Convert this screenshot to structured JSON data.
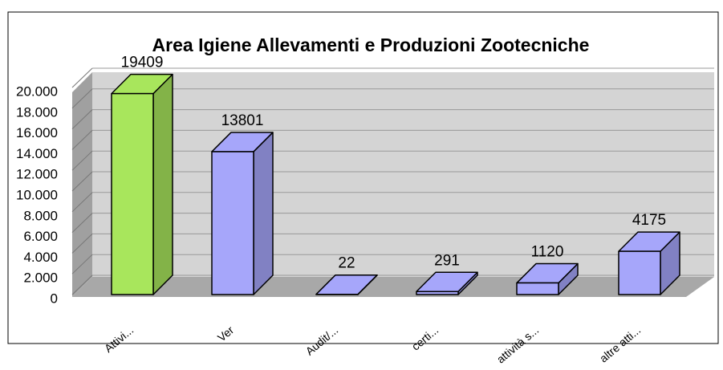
{
  "chart_data": {
    "type": "bar3d",
    "title": "Area Igiene Allevamenti e Produzioni Zootecniche",
    "categories": [
      "Attivi...",
      "Ver",
      "Audit/...",
      "certi...",
      "attività s...",
      "altre atti..."
    ],
    "values": [
      19409,
      13801,
      22,
      291,
      1120,
      4175
    ],
    "colors": [
      "#a8e65c",
      "#a6a6fa",
      "#a6a6fa",
      "#a6a6fa",
      "#a6a6fa",
      "#a6a6fa"
    ],
    "ylim": [
      0,
      20000
    ],
    "yticks": [
      0,
      {
        "value": 2000,
        "label": "2.000"
      },
      {
        "value": 4000,
        "label": "4.000"
      },
      {
        "value": 6000,
        "label": "6.000"
      },
      {
        "value": 8000,
        "label": "8.000"
      },
      {
        "value": 10000,
        "label": "10.000"
      },
      {
        "value": 12000,
        "label": "12.000"
      },
      {
        "value": 14000,
        "label": "14.000"
      },
      {
        "value": 16000,
        "label": "16.000"
      },
      {
        "value": 18000,
        "label": "18.000"
      },
      {
        "value": 20000,
        "label": "20.000"
      }
    ],
    "grid": true
  }
}
